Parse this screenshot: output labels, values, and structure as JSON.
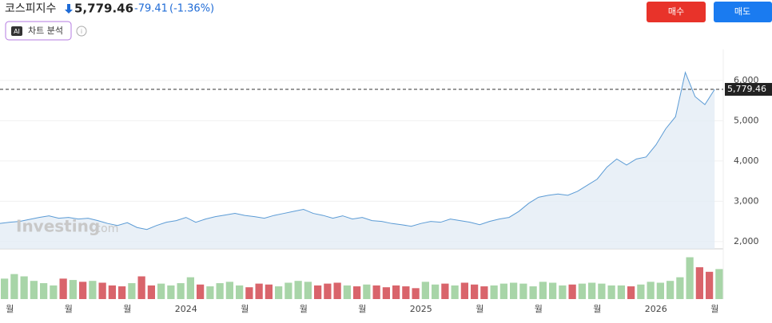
{
  "header": {
    "name": "코스피지수",
    "price": "5,779.46",
    "change": "-79.41",
    "change_pct": "(-1.36%)",
    "buy": "매수",
    "sell": "매도",
    "ai_badge": "AI",
    "ai_label": "차트 분석",
    "watermark_main": "Investing",
    "watermark_tail": ".com"
  },
  "chart_data": {
    "type": "line",
    "categories": [
      null,
      "월",
      null,
      null,
      null,
      null,
      null,
      "월",
      null,
      null,
      null,
      null,
      null,
      "월",
      null,
      null,
      null,
      null,
      null,
      "2024",
      null,
      null,
      null,
      null,
      null,
      "월",
      null,
      null,
      null,
      null,
      null,
      "월",
      null,
      null,
      null,
      null,
      null,
      "월",
      null,
      null,
      null,
      null,
      null,
      "2025",
      null,
      null,
      null,
      null,
      null,
      "월",
      null,
      null,
      null,
      null,
      null,
      "월",
      null,
      null,
      null,
      null,
      null,
      "월",
      null,
      null,
      null,
      null,
      null,
      "2026",
      null,
      null,
      null,
      null,
      null,
      "월"
    ],
    "series": [
      {
        "name": "코스피지수",
        "color": "#5b9bd5",
        "values": [
          2450,
          2480,
          2500,
          2550,
          2600,
          2640,
          2580,
          2600,
          2560,
          2580,
          2520,
          2450,
          2400,
          2470,
          2350,
          2300,
          2400,
          2480,
          2520,
          2600,
          2480,
          2560,
          2620,
          2660,
          2700,
          2650,
          2620,
          2580,
          2650,
          2700,
          2750,
          2800,
          2700,
          2650,
          2580,
          2640,
          2560,
          2600,
          2520,
          2500,
          2450,
          2420,
          2380,
          2450,
          2500,
          2480,
          2560,
          2520,
          2480,
          2420,
          2500,
          2560,
          2600,
          2750,
          2950,
          3100,
          3150,
          3180,
          3150,
          3250,
          3400,
          3550,
          3850,
          4050,
          3900,
          4050,
          4100,
          4400,
          4800,
          5100,
          6200,
          5600,
          5400,
          5779.46
        ]
      }
    ],
    "volume": [
      45,
      55,
      50,
      40,
      35,
      30,
      45,
      42,
      38,
      40,
      36,
      30,
      28,
      35,
      50,
      30,
      34,
      30,
      35,
      48,
      32,
      28,
      35,
      38,
      30,
      26,
      34,
      32,
      28,
      36,
      40,
      38,
      30,
      34,
      36,
      30,
      28,
      32,
      30,
      26,
      30,
      28,
      24,
      38,
      32,
      34,
      30,
      36,
      32,
      28,
      30,
      34,
      36,
      34,
      28,
      38,
      36,
      30,
      32,
      34,
      36,
      34,
      30,
      30,
      28,
      32,
      38,
      36,
      40,
      48,
      92,
      70,
      60,
      66
    ],
    "ylim": [
      1820,
      6770
    ],
    "yticks": [
      {
        "value": 2000,
        "label": "2,000"
      },
      {
        "value": 3000,
        "label": "3,000"
      },
      {
        "value": 4000,
        "label": "4,000"
      },
      {
        "value": 5000,
        "label": "5,000"
      },
      {
        "value": 6000,
        "label": "6,000"
      }
    ],
    "vlim": [
      0,
      100
    ]
  }
}
